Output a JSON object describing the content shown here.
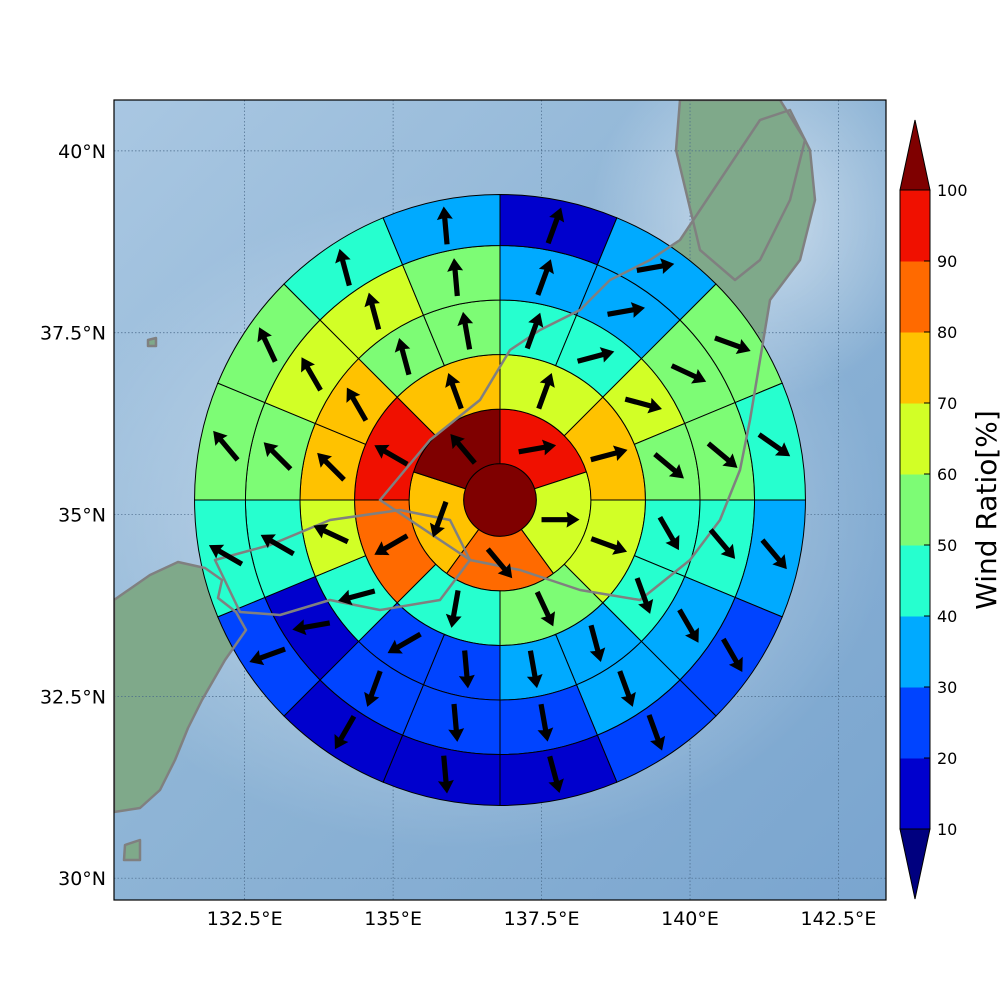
{
  "map": {
    "lat_ticks": [
      "40°N",
      "37.5°N",
      "35°N",
      "32.5°N",
      "30°N"
    ],
    "lon_ticks": [
      "132.5°E",
      "135°E",
      "137.5°E",
      "140°E",
      "142.5°E"
    ],
    "extent": {
      "lon_min": 130.3,
      "lon_max": 143.3,
      "lat_min": 29.7,
      "lat_max": 40.7
    },
    "center": {
      "lon": 136.8,
      "lat": 35.2
    },
    "ring_radii_deg_lat": [
      0.5,
      1.25,
      2.0,
      2.75,
      3.5,
      4.2
    ],
    "land_color": "#7fa98a",
    "sea_color": "#8fb5d6",
    "coastline_color": "#808080"
  },
  "colorbar": {
    "label": "Wind Ratio[%]",
    "ticks": [
      "10",
      "20",
      "30",
      "40",
      "50",
      "60",
      "70",
      "80",
      "90",
      "100"
    ],
    "range": [
      10,
      100
    ],
    "colors": [
      "#0000cd",
      "#0044ff",
      "#00aaff",
      "#26ffcf",
      "#7dfc75",
      "#d2ff26",
      "#ffc200",
      "#ff6a00",
      "#f01000"
    ],
    "under_color": "#00007f",
    "over_color": "#7f0000"
  },
  "wind_field": {
    "center_cell": {
      "value": 100
    },
    "rings": [
      {
        "directions": [
          "N",
          "E",
          "SE",
          "SW",
          "NW"
        ],
        "values": [
          90,
          65,
          85,
          75,
          100
        ],
        "wind_deg": [
          80,
          90,
          140,
          200,
          320
        ]
      },
      {
        "directions": [
          "N",
          "NE",
          "E",
          "SE",
          "S",
          "SW",
          "W",
          "NW"
        ],
        "values": [
          65,
          75,
          65,
          55,
          45,
          85,
          95,
          75
        ],
        "wind_deg": [
          20,
          75,
          110,
          155,
          190,
          240,
          300,
          340
        ]
      },
      {
        "directions": [
          "N",
          "NNE",
          "NE",
          "ENE",
          "E",
          "ESE",
          "SE",
          "SSE",
          "S",
          "SSW",
          "SW",
          "WSW",
          "W",
          "WNW",
          "NW",
          "NNW"
        ],
        "values": [
          45,
          45,
          65,
          55,
          45,
          45,
          35,
          35,
          25,
          20,
          45,
          65,
          75,
          75,
          55,
          55
        ],
        "wind_deg": [
          20,
          75,
          105,
          130,
          150,
          160,
          165,
          170,
          175,
          240,
          255,
          295,
          315,
          330,
          345,
          350
        ]
      },
      {
        "directions": [
          "N",
          "NNE",
          "NE",
          "ENE",
          "E",
          "ESE",
          "SE",
          "SSE",
          "S",
          "SSW",
          "SW",
          "WSW",
          "W",
          "WNW",
          "NW",
          "NNW"
        ],
        "values": [
          35,
          35,
          55,
          55,
          45,
          35,
          30,
          25,
          20,
          20,
          15,
          45,
          55,
          65,
          65,
          55
        ],
        "wind_deg": [
          20,
          80,
          115,
          130,
          140,
          150,
          160,
          170,
          175,
          200,
          260,
          300,
          315,
          330,
          345,
          355
        ]
      },
      {
        "directions": [
          "N",
          "NNE",
          "NE",
          "ENE",
          "E",
          "ESE",
          "SE",
          "SSE",
          "S",
          "SSW",
          "SW",
          "WSW",
          "W",
          "WNW",
          "NW",
          "NNW"
        ],
        "values": [
          15,
          35,
          55,
          45,
          35,
          25,
          20,
          15,
          15,
          15,
          20,
          45,
          55,
          55,
          45,
          35
        ],
        "wind_deg": [
          20,
          80,
          110,
          125,
          140,
          150,
          160,
          165,
          175,
          210,
          250,
          300,
          320,
          335,
          345,
          355
        ]
      }
    ]
  }
}
